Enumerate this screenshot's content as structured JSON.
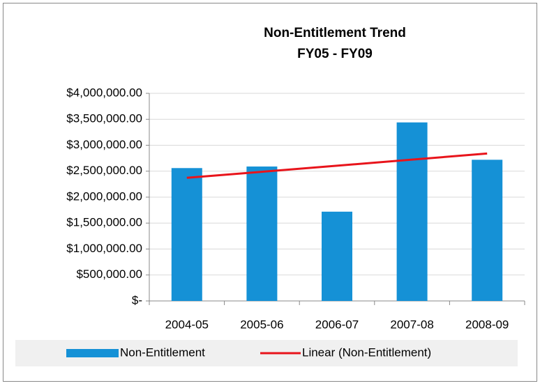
{
  "chart_data": {
    "type": "bar",
    "title": "Non-Entitlement Trend",
    "subtitle": "FY05 - FY09",
    "categories": [
      "2004-05",
      "2005-06",
      "2006-07",
      "2007-08",
      "2008-09"
    ],
    "series": [
      {
        "name": "Non-Entitlement",
        "type": "bar",
        "color": "#1591d6",
        "values": [
          2560000,
          2590000,
          1720000,
          3440000,
          2720000
        ]
      },
      {
        "name": "Linear (Non-Entitlement)",
        "type": "line",
        "color": "#e8141b",
        "values": [
          2372000,
          2489000,
          2606000,
          2723000,
          2840000
        ]
      }
    ],
    "ylim": [
      0,
      4000000
    ],
    "yticks": [
      {
        "value": 0,
        "label": "$-"
      },
      {
        "value": 500000,
        "label": "$500,000.00"
      },
      {
        "value": 1000000,
        "label": "$1,000,000.00"
      },
      {
        "value": 1500000,
        "label": "$1,500,000.00"
      },
      {
        "value": 2000000,
        "label": "$2,000,000.00"
      },
      {
        "value": 2500000,
        "label": "$2,500,000.00"
      },
      {
        "value": 3000000,
        "label": "$3,000,000.00"
      },
      {
        "value": 3500000,
        "label": "$3,500,000.00"
      },
      {
        "value": 4000000,
        "label": "$4,000,000.00"
      }
    ],
    "grid": true,
    "legend": "bottom"
  }
}
